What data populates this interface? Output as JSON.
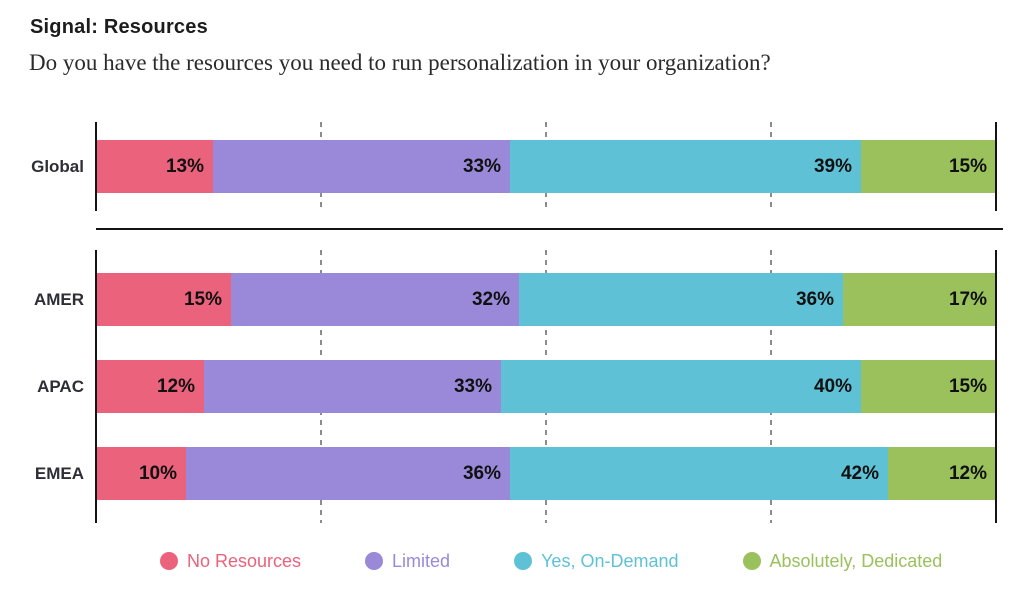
{
  "header": {
    "kicker": "Signal: Resources",
    "question": "Do you have the resources you need to run personalization in your organization?"
  },
  "chart_data": {
    "type": "bar",
    "variant": "stacked-horizontal",
    "title": "Signal: Resources",
    "subtitle": "Do you have the resources you need to run personalization in your organization?",
    "unit": "%",
    "xlim": [
      0,
      100
    ],
    "grid": "dashed-vertical",
    "gridlines_pct": [
      25,
      50,
      75
    ],
    "legend_position": "bottom",
    "value_labels": "inside-end",
    "axis_color": "#141414",
    "gridline_color": "#8c8c8c",
    "series": [
      {
        "label": "No Resources",
        "color": "#EB627C"
      },
      {
        "label": "Limited",
        "color": "#9A89D8"
      },
      {
        "label": "Yes, On-Demand",
        "color": "#5FC1D6"
      },
      {
        "label": "Absolutely, Dedicated",
        "color": "#9AC15C"
      }
    ],
    "groups": [
      {
        "name": "global",
        "rows": [
          {
            "label": "Global",
            "values": [
              13,
              33,
              39,
              15
            ]
          }
        ]
      },
      {
        "name": "regions",
        "rows": [
          {
            "label": "AMER",
            "values": [
              15,
              32,
              36,
              17
            ]
          },
          {
            "label": "APAC",
            "values": [
              12,
              33,
              40,
              15
            ]
          },
          {
            "label": "EMEA",
            "values": [
              10,
              36,
              42,
              12
            ]
          }
        ]
      }
    ]
  }
}
